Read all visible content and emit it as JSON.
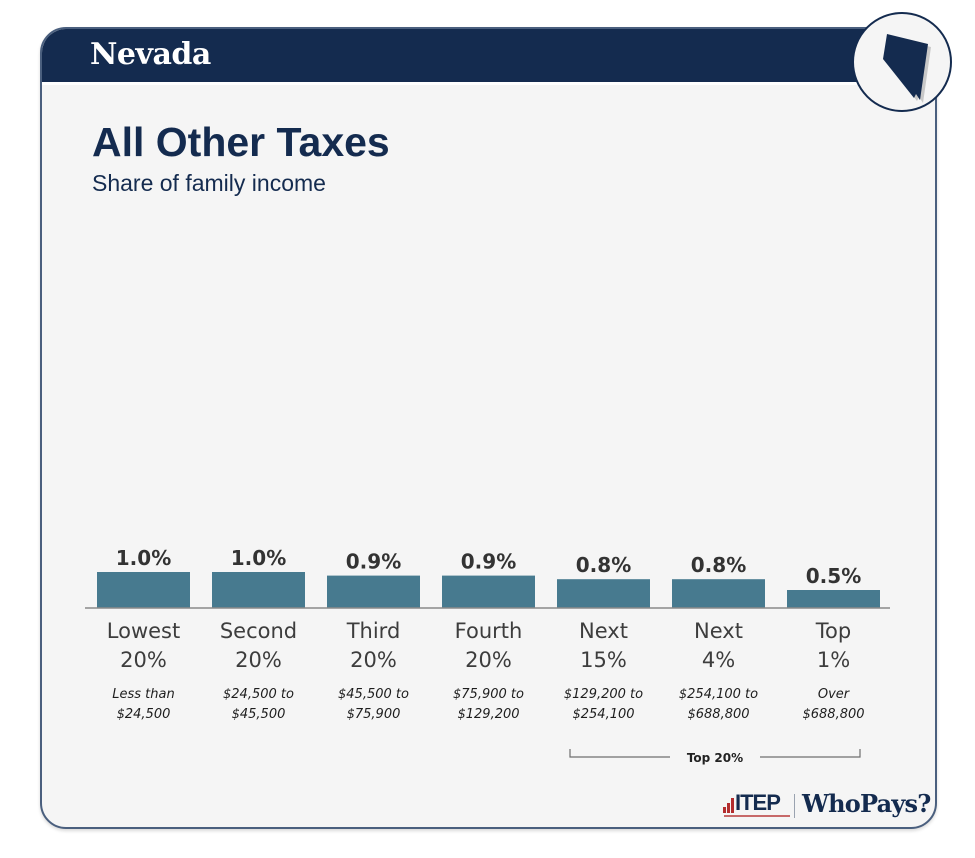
{
  "header": {
    "state": "Nevada",
    "state_shape_icon": "nevada-state-outline-icon"
  },
  "chart_data": {
    "type": "bar",
    "title": "All Other Taxes",
    "subtitle": "Share of family income",
    "xlabel": "",
    "ylabel": "",
    "ylim": [
      0,
      1.0
    ],
    "grid": false,
    "categories": [
      {
        "line1": "Lowest",
        "line2": "20%",
        "range1": "Less than",
        "range2": "$24,500"
      },
      {
        "line1": "Second",
        "line2": "20%",
        "range1": "$24,500 to",
        "range2": "$45,500"
      },
      {
        "line1": "Third",
        "line2": "20%",
        "range1": "$45,500 to",
        "range2": "$75,900"
      },
      {
        "line1": "Fourth",
        "line2": "20%",
        "range1": "$75,900 to",
        "range2": "$129,200"
      },
      {
        "line1": "Next",
        "line2": "15%",
        "range1": "$129,200 to",
        "range2": "$254,100"
      },
      {
        "line1": "Next",
        "line2": "4%",
        "range1": "$254,100 to",
        "range2": "$688,800"
      },
      {
        "line1": "Top",
        "line2": "1%",
        "range1": "Over",
        "range2": "$688,800"
      }
    ],
    "values": [
      1.0,
      1.0,
      0.9,
      0.9,
      0.8,
      0.8,
      0.5
    ],
    "value_labels": [
      "1.0%",
      "1.0%",
      "0.9%",
      "0.9%",
      "0.8%",
      "0.8%",
      "0.5%"
    ],
    "bar_color": "#477a8f",
    "group_annotation": {
      "label": "Top 20%",
      "from_index": 4,
      "to_index": 6
    }
  },
  "footer": {
    "org_logo": "ITEP",
    "product_logo": "WhoPays?"
  },
  "colors": {
    "navy": "#142b4f",
    "bar": "#477a8f",
    "accent_red": "#b32d2e"
  }
}
